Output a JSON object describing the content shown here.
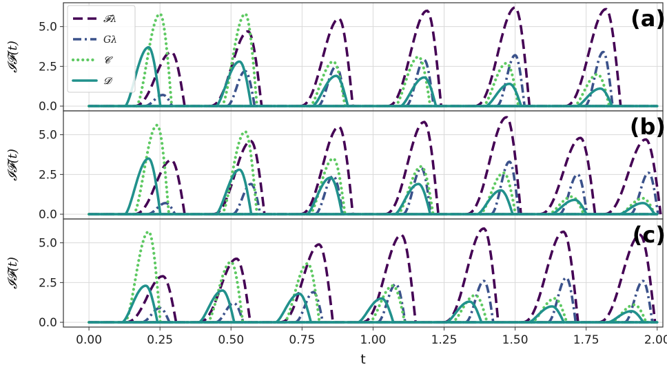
{
  "chart_data": {
    "type": "line",
    "xlabel": "t",
    "ylabel": "𝓘𝓕(t)",
    "xlim": [
      -0.09,
      2.02
    ],
    "ylim": [
      -0.3,
      6.5
    ],
    "xticks": [
      "0.00",
      "0.25",
      "0.50",
      "0.75",
      "1.00",
      "1.25",
      "1.50",
      "1.75",
      "2.00"
    ],
    "yticks": [
      "0.0",
      "2.5",
      "5.0"
    ],
    "grid": true,
    "legend": {
      "placement": "top-left",
      "entries": [
        {
          "label": "𝓕λ",
          "style": "dashed",
          "color": "#440154"
        },
        {
          "label": "Gλ",
          "style": "dashdot",
          "color": "#3b528b"
        },
        {
          "label": "𝓒",
          "style": "dotted",
          "color": "#5ec962"
        },
        {
          "label": "𝓓",
          "style": "solid",
          "color": "#21918c"
        }
      ]
    },
    "panels": [
      {
        "label": "(a)",
        "F": [
          [
            0.29,
            3.4
          ],
          [
            0.56,
            4.7
          ],
          [
            0.88,
            5.5
          ],
          [
            1.19,
            6.0
          ],
          [
            1.5,
            6.2
          ],
          [
            1.82,
            6.1
          ]
        ],
        "G": [
          [
            0.26,
            0.7
          ],
          [
            0.55,
            2.2
          ],
          [
            0.87,
            2.5
          ],
          [
            1.18,
            2.9
          ],
          [
            1.5,
            3.2
          ],
          [
            1.81,
            3.4
          ]
        ],
        "C": [
          [
            0.25,
            5.8
          ],
          [
            0.55,
            5.8
          ],
          [
            0.86,
            2.8
          ],
          [
            1.16,
            3.1
          ],
          [
            1.47,
            2.7
          ],
          [
            1.79,
            2.0
          ]
        ],
        "D": [
          [
            0.21,
            3.7
          ],
          [
            0.53,
            2.8
          ],
          [
            0.87,
            1.9
          ],
          [
            1.18,
            1.8
          ],
          [
            1.48,
            1.4
          ],
          [
            1.8,
            1.1
          ]
        ]
      },
      {
        "label": "(b)",
        "F": [
          [
            0.29,
            3.4
          ],
          [
            0.57,
            4.6
          ],
          [
            0.88,
            5.5
          ],
          [
            1.18,
            5.8
          ],
          [
            1.47,
            6.1
          ],
          [
            1.73,
            4.8
          ],
          [
            1.96,
            4.7
          ]
        ],
        "G": [
          [
            0.27,
            0.7
          ],
          [
            0.57,
            1.9
          ],
          [
            0.86,
            2.4
          ],
          [
            1.17,
            2.9
          ],
          [
            1.48,
            3.3
          ],
          [
            1.72,
            2.5
          ],
          [
            1.97,
            2.6
          ]
        ],
        "C": [
          [
            0.24,
            5.6
          ],
          [
            0.55,
            5.2
          ],
          [
            0.86,
            3.5
          ],
          [
            1.17,
            3.0
          ],
          [
            1.46,
            2.6
          ],
          [
            1.7,
            1.1
          ],
          [
            1.95,
            1.0
          ]
        ],
        "D": [
          [
            0.21,
            3.5
          ],
          [
            0.53,
            2.8
          ],
          [
            0.85,
            2.3
          ],
          [
            1.16,
            1.9
          ],
          [
            1.45,
            1.5
          ],
          [
            1.71,
            0.9
          ],
          [
            1.95,
            0.7
          ]
        ]
      },
      {
        "label": "(c)",
        "F": [
          [
            0.26,
            2.9
          ],
          [
            0.52,
            4.0
          ],
          [
            0.81,
            4.9
          ],
          [
            1.1,
            5.5
          ],
          [
            1.39,
            5.9
          ],
          [
            1.67,
            5.7
          ],
          [
            1.94,
            5.5
          ]
        ],
        "G": [
          [
            0.25,
            0.9
          ],
          [
            0.51,
            1.2
          ],
          [
            0.79,
            1.9
          ],
          [
            1.08,
            2.4
          ],
          [
            1.39,
            2.6
          ],
          [
            1.68,
            2.8
          ],
          [
            1.95,
            2.6
          ]
        ],
        "C": [
          [
            0.21,
            5.7
          ],
          [
            0.5,
            3.8
          ],
          [
            0.77,
            3.7
          ],
          [
            1.07,
            2.3
          ],
          [
            1.36,
            1.7
          ],
          [
            1.64,
            1.5
          ],
          [
            1.92,
            1.1
          ]
        ],
        "D": [
          [
            0.2,
            2.3
          ],
          [
            0.47,
            2.0
          ],
          [
            0.74,
            1.8
          ],
          [
            1.03,
            1.5
          ],
          [
            1.34,
            1.3
          ],
          [
            1.63,
            1.0
          ],
          [
            1.91,
            0.7
          ]
        ]
      }
    ]
  }
}
